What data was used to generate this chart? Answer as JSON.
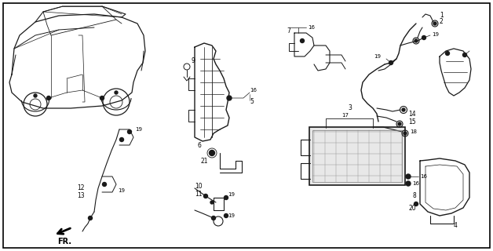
{
  "background_color": "#ffffff",
  "border_color": "#000000",
  "fig_width": 6.28,
  "fig_height": 3.2,
  "dpi": 100,
  "line_color": "#1a1a1a",
  "text_color": "#000000",
  "font_size": 5.5,
  "arrow_label": "FR."
}
